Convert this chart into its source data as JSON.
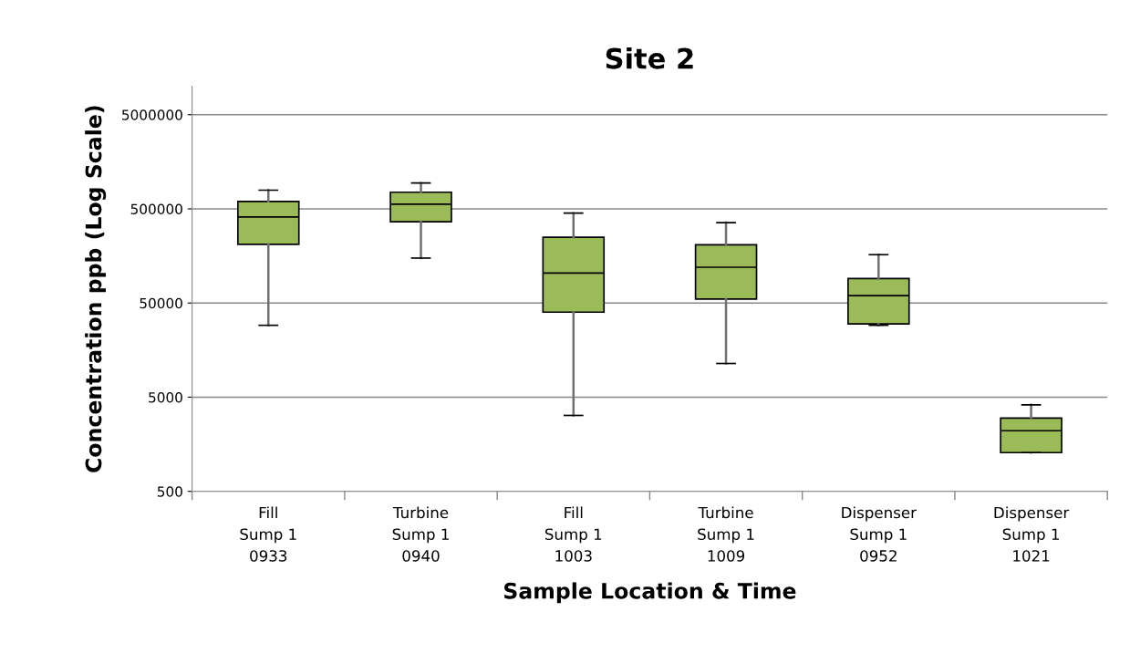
{
  "chart_data": {
    "type": "box",
    "title": "Site 2",
    "xlabel": "Sample Location & Time",
    "ylabel": "Concentration ppb (Log Scale)",
    "categories": [
      "Fill\nSump 1\n0933",
      "Turbine\nSump 1\n0940",
      "Fill\nSump 1\n1003",
      "Turbine\nSump 1\n1009",
      "Dispenser\nSump 1\n0952",
      "Dispenser\nSump 1\n1021"
    ],
    "boxes": [
      {
        "low": 29000,
        "q1": 210000,
        "median": 410000,
        "q3": 600000,
        "high": 790000
      },
      {
        "low": 150000,
        "q1": 365000,
        "median": 560000,
        "q3": 750000,
        "high": 940000
      },
      {
        "low": 3200,
        "q1": 40000,
        "median": 104000,
        "q3": 250000,
        "high": 450000
      },
      {
        "low": 11400,
        "q1": 55000,
        "median": 120000,
        "q3": 208000,
        "high": 357000
      },
      {
        "low": 29000,
        "q1": 30000,
        "median": 60000,
        "q3": 91000,
        "high": 163000
      },
      {
        "low": 1290,
        "q1": 1290,
        "median": 2200,
        "q3": 3000,
        "high": 4150
      }
    ],
    "color": "#9bbb59",
    "log": true,
    "ylim": [
      500,
      10000000
    ],
    "yticks": [
      500,
      5000,
      50000,
      500000,
      5000000
    ],
    "grid": "y",
    "legend": false
  }
}
